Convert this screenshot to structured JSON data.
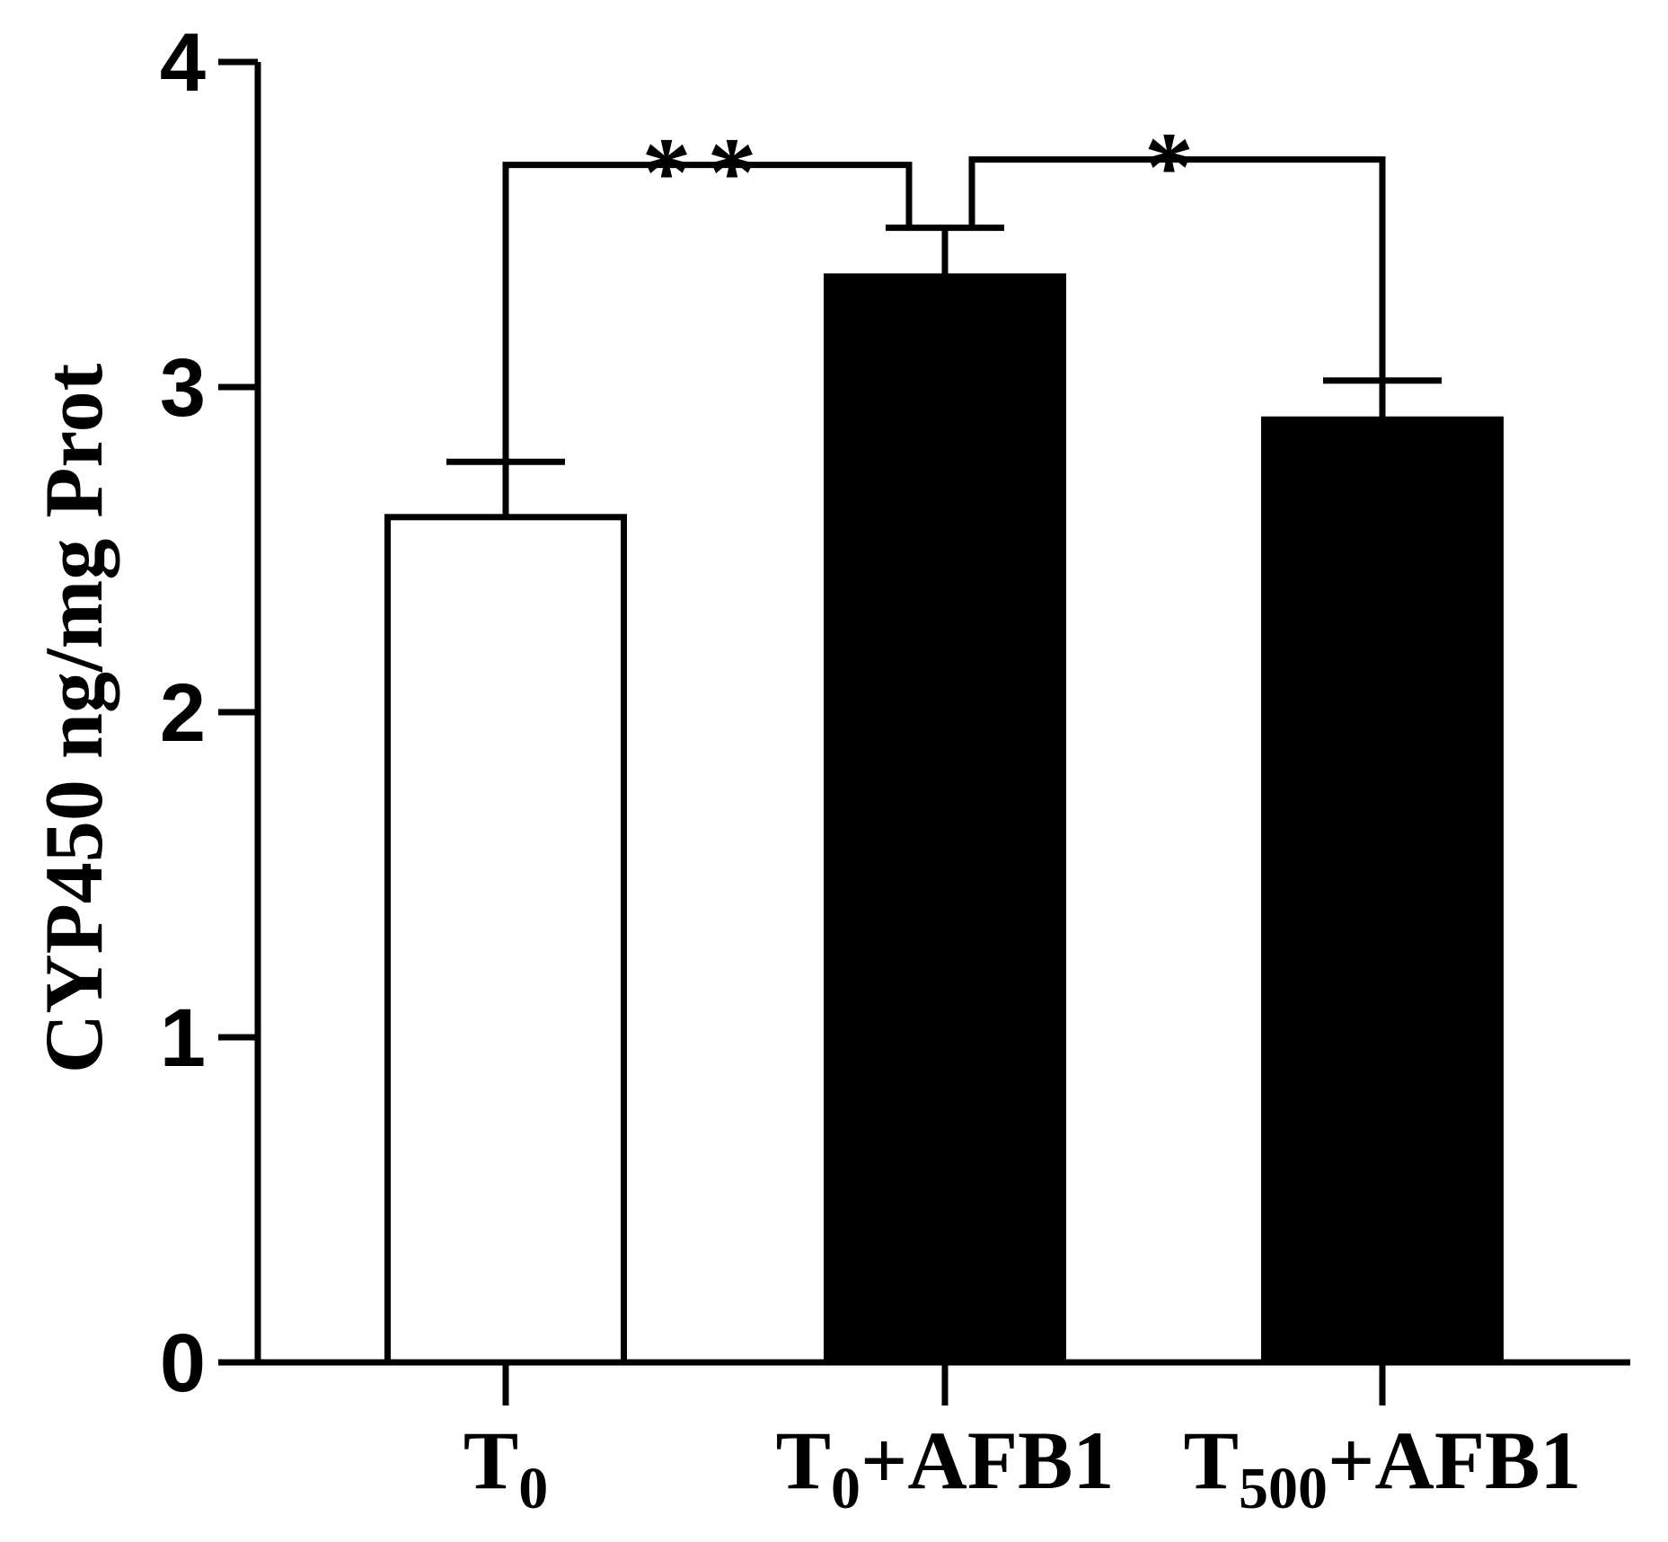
{
  "chart_data": {
    "type": "bar",
    "y_label": "CYP450 ng/mg Prot",
    "categories": [
      "T0",
      "T0+AFB1",
      "T500+AFB1"
    ],
    "values": [
      2.6,
      3.34,
      2.9
    ],
    "errors": [
      0.17,
      0.15,
      0.12
    ],
    "colors": [
      "#ffffff",
      "#000000",
      "#000000"
    ],
    "ylim": [
      0,
      4
    ],
    "yticks": [
      0,
      1,
      2,
      3,
      4
    ],
    "annotations": [
      {
        "text": "**",
        "from": 0,
        "to": 1
      },
      {
        "text": "*",
        "from": 1,
        "to": 2
      }
    ]
  }
}
